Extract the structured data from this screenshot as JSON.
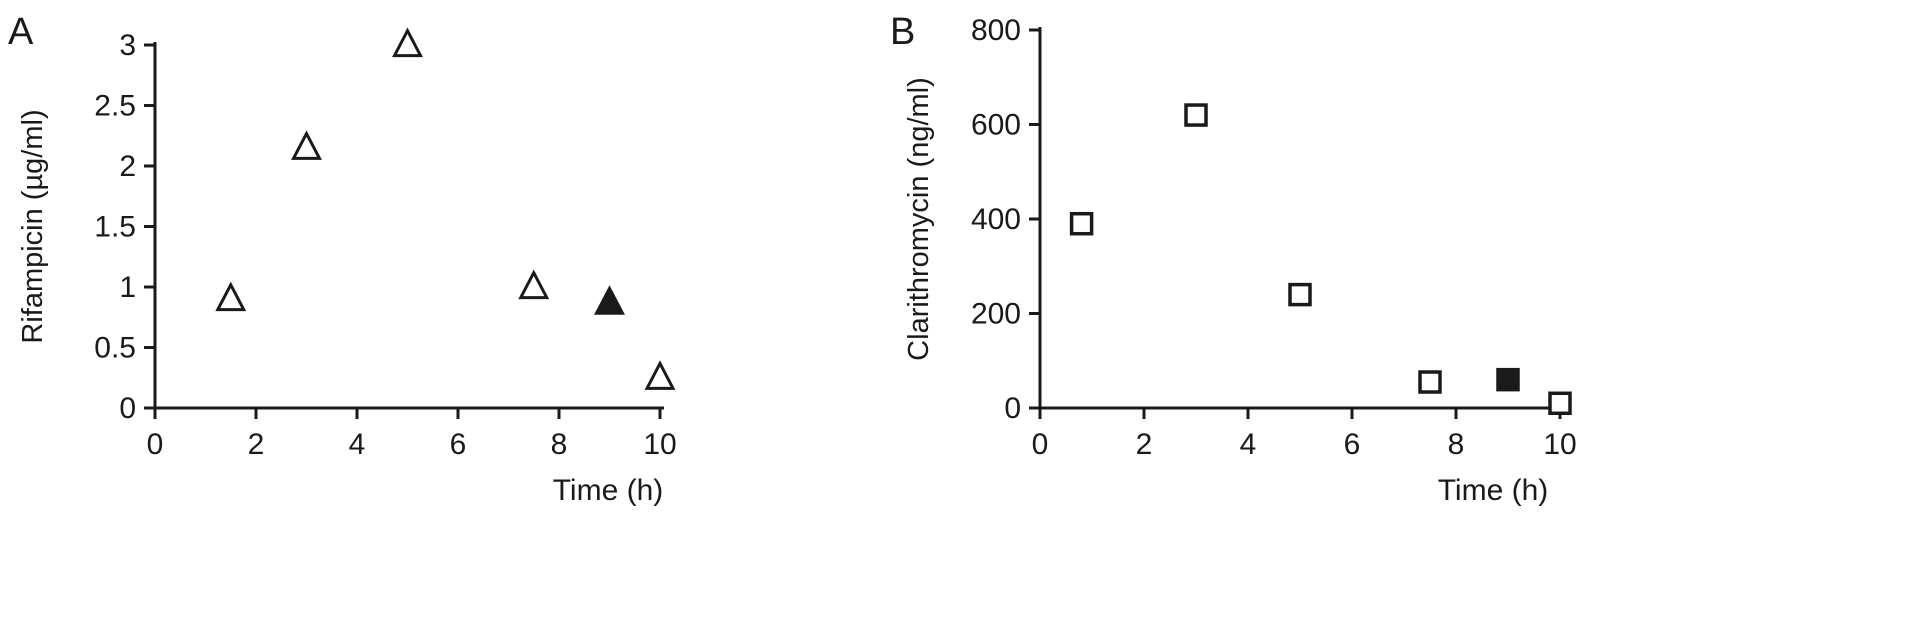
{
  "figure": {
    "background": "#ffffff",
    "ink_color": "#1a1a1a"
  },
  "chart_data": [
    {
      "type": "scatter",
      "panel_label": "A",
      "title": "",
      "xlabel": "Time (h)",
      "ylabel": "Rifampicin (µg/ml)",
      "xlim": [
        0,
        10
      ],
      "ylim": [
        0,
        3
      ],
      "xtick_values": [
        0,
        2,
        4,
        6,
        8,
        10
      ],
      "xtick_labels": [
        "0",
        "2",
        "4",
        "6",
        "8",
        "10"
      ],
      "ytick_values": [
        0,
        0.5,
        1,
        1.5,
        2,
        2.5,
        3
      ],
      "ytick_labels": [
        "0",
        "0.5",
        "1",
        "1.5",
        "2",
        "2.5",
        "3"
      ],
      "grid": false,
      "legend": "none",
      "series": [
        {
          "name": "rifampicin-open-triangles",
          "marker": "triangle-open",
          "points": [
            [
              1.5,
              0.9
            ],
            [
              3,
              2.15
            ],
            [
              5,
              3.0
            ],
            [
              7.5,
              1.0
            ],
            [
              10,
              0.25
            ]
          ]
        },
        {
          "name": "rifampicin-filled-triangle",
          "marker": "triangle-filled",
          "points": [
            [
              9,
              0.87
            ]
          ]
        }
      ]
    },
    {
      "type": "scatter",
      "panel_label": "B",
      "title": "",
      "xlabel": "Time (h)",
      "ylabel": "Clarithromycin (ng/ml)",
      "xlim": [
        0,
        10
      ],
      "ylim": [
        0,
        800
      ],
      "xtick_values": [
        0,
        2,
        4,
        6,
        8,
        10
      ],
      "xtick_labels": [
        "0",
        "2",
        "4",
        "6",
        "8",
        "10"
      ],
      "ytick_values": [
        0,
        200,
        400,
        600,
        800
      ],
      "ytick_labels": [
        "0",
        "200",
        "400",
        "600",
        "800"
      ],
      "grid": false,
      "legend": "none",
      "series": [
        {
          "name": "clarithromycin-open-squares",
          "marker": "square-open",
          "points": [
            [
              0.8,
              390
            ],
            [
              3,
              620
            ],
            [
              5,
              240
            ],
            [
              7.5,
              55
            ],
            [
              10,
              10
            ]
          ]
        },
        {
          "name": "clarithromycin-filled-square",
          "marker": "square-filled",
          "points": [
            [
              9,
              60
            ]
          ]
        }
      ]
    }
  ]
}
